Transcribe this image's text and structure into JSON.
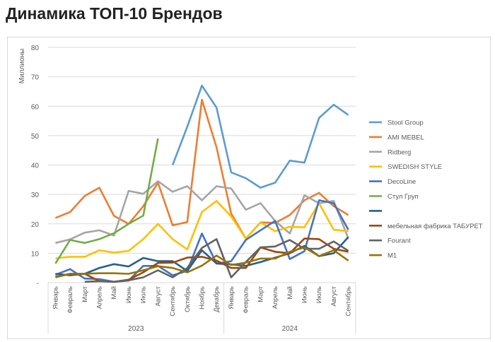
{
  "title": "Динамика ТОП-10 Брендов",
  "chart_data": {
    "type": "line",
    "title": "Динамика ТОП-10 Брендов",
    "ylabel": "Миллионы",
    "xlabel": "",
    "ylim": [
      0,
      80
    ],
    "yticks": [
      "-",
      "10",
      "20",
      "30",
      "40",
      "50",
      "60",
      "70",
      "80"
    ],
    "grid": true,
    "legend": "right",
    "categories": [
      "Январь",
      "Февраль",
      "Март",
      "Апрель",
      "Май",
      "Июнь",
      "Июль",
      "Август",
      "Сентябрь",
      "Октябрь",
      "Ноябрь",
      "Декабрь",
      "Январь",
      "Февраль",
      "Март",
      "Апрель",
      "Май",
      "Июнь",
      "Июль",
      "Август",
      "Сентябрь"
    ],
    "groups": [
      {
        "label": "2023",
        "count": 12
      },
      {
        "label": "2024",
        "count": 9
      }
    ],
    "series": [
      {
        "name": "Stool Group",
        "color": "#5b9bd5",
        "values": [
          null,
          null,
          null,
          null,
          null,
          null,
          null,
          null,
          40,
          53,
          67,
          59.5,
          37.5,
          35.5,
          32.3,
          34,
          41.5,
          40.8,
          56,
          60.5,
          57
        ]
      },
      {
        "name": "AMI MEBEL",
        "color": "#ed7d31",
        "values": [
          22,
          24,
          29.5,
          32.3,
          22.7,
          20,
          26,
          34,
          19.5,
          20.6,
          62.2,
          46,
          23.5,
          15,
          20.5,
          20.3,
          23,
          28,
          30.5,
          26,
          23
        ]
      },
      {
        "name": "Ridberg",
        "color": "#a5a5a5",
        "values": [
          13.5,
          14.7,
          17,
          17.8,
          16,
          31.2,
          30.2,
          34.5,
          30.9,
          32.8,
          28,
          32.8,
          32,
          24.8,
          27,
          21,
          16.7,
          29.7,
          27,
          27.8,
          15
        ]
      },
      {
        "name": "SWEDISH STYLE",
        "color": "#ffc000",
        "values": [
          8.3,
          8.8,
          8.8,
          11,
          10.2,
          10.8,
          14.8,
          20,
          14.8,
          11.3,
          24,
          27.8,
          22.5,
          15,
          20.5,
          17.5,
          19,
          18.8,
          27,
          18,
          17.5
        ]
      },
      {
        "name": "DecoLine",
        "color": "#4472c4",
        "values": [
          2.7,
          4.6,
          1.4,
          1.2,
          0.3,
          0.7,
          5.7,
          5.7,
          2.5,
          4,
          16.7,
          6.5,
          7.3,
          14.5,
          17.8,
          21,
          8,
          10.7,
          28,
          27,
          18
        ]
      },
      {
        "name": "Стул Груп",
        "color": "#70ad47",
        "values": [
          6.5,
          14.5,
          13.5,
          14.8,
          16.8,
          20,
          22.8,
          49,
          null,
          null,
          null,
          null,
          null,
          null,
          null,
          null,
          null,
          null,
          null,
          null,
          null
        ]
      },
      {
        "name": "",
        "color": "#255e91",
        "values": [
          3,
          2.5,
          3,
          5,
          6.3,
          5.5,
          8.4,
          7.3,
          7.3,
          4,
          11,
          6.5,
          6.2,
          5.7,
          7,
          8.5,
          10,
          12.5,
          9,
          10,
          15.5
        ]
      },
      {
        "name": "мебельная фабрика ТАБУРЕТ",
        "color": "#9e480e",
        "values": [
          2,
          3,
          3,
          0.5,
          0.3,
          1,
          3.5,
          6.7,
          6.8,
          8.5,
          8.8,
          7.5,
          5,
          5,
          12,
          10.5,
          10,
          15,
          14.8,
          11.5,
          10.5
        ]
      },
      {
        "name": "Fourant",
        "color": "#636363",
        "values": [
          null,
          null,
          0.3,
          0.5,
          0.3,
          0.8,
          1.8,
          4.2,
          1.8,
          5,
          11.8,
          14.8,
          1.8,
          7,
          12,
          12.3,
          14.5,
          11.5,
          11.5,
          14,
          10.8
        ]
      },
      {
        "name": "M1",
        "color": "#997300",
        "values": [
          1.8,
          3,
          3,
          3.2,
          3.2,
          3,
          4.2,
          5.6,
          5,
          3.5,
          5.8,
          9.2,
          6,
          6.8,
          8.2,
          8.2,
          10.5,
          12,
          9,
          11,
          7.5
        ]
      }
    ]
  }
}
